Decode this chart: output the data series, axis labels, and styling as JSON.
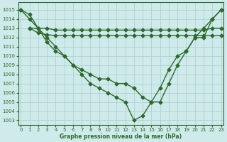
{
  "y_main": [
    1015,
    1014.5,
    1013,
    1011.5,
    1010.5,
    1010,
    1009,
    1008,
    1007,
    1006.5,
    1006,
    1005.5,
    1005,
    1003,
    1003.5,
    1005,
    1006.5,
    1008.5,
    1010,
    1010.5,
    1012,
    1012,
    1014,
    1015
  ],
  "y_mid": [
    1015,
    1014,
    1013,
    1012,
    1011,
    1010,
    1009,
    1008.5,
    1008,
    1007.5,
    1007.5,
    1007,
    1007,
    1006.5,
    1005.5,
    1005,
    1005,
    1007,
    1009,
    1010.5,
    1012,
    1013,
    1014,
    1015
  ],
  "y_flat1": [
    null,
    1013,
    1013,
    1013,
    1012.8,
    1012.8,
    1012.8,
    1012.8,
    1012.8,
    1012.8,
    1012.8,
    1012.8,
    1012.8,
    1012.8,
    1012.8,
    1012.8,
    1012.8,
    1012.8,
    1012.8,
    1012.8,
    1012.8,
    1012.8,
    1013,
    1013
  ],
  "y_flat2": [
    null,
    1013,
    1012.5,
    1012.3,
    1012.2,
    1012.2,
    1012.2,
    1012.2,
    1012.2,
    1012.2,
    1012.2,
    1012.2,
    1012.2,
    1012.2,
    1012.2,
    1012.2,
    1012.2,
    1012.2,
    1012.2,
    1012.2,
    1012.2,
    1012.2,
    1012.2,
    1012.2
  ],
  "xlabel": "Graphe pression niveau de la mer (hPa)",
  "ylim": [
    1002.5,
    1015.8
  ],
  "xlim": [
    -0.3,
    23.3
  ],
  "yticks": [
    1003,
    1004,
    1005,
    1006,
    1007,
    1008,
    1009,
    1010,
    1011,
    1012,
    1013,
    1014,
    1015
  ],
  "xticks": [
    0,
    1,
    2,
    3,
    4,
    5,
    6,
    7,
    8,
    9,
    10,
    11,
    12,
    13,
    14,
    15,
    16,
    17,
    18,
    19,
    20,
    21,
    22,
    23
  ],
  "line_color": "#2d6a2d",
  "bg_color": "#ceeaea",
  "grid_color": "#a8cccc",
  "markersize": 2.5,
  "linewidth": 1.0
}
